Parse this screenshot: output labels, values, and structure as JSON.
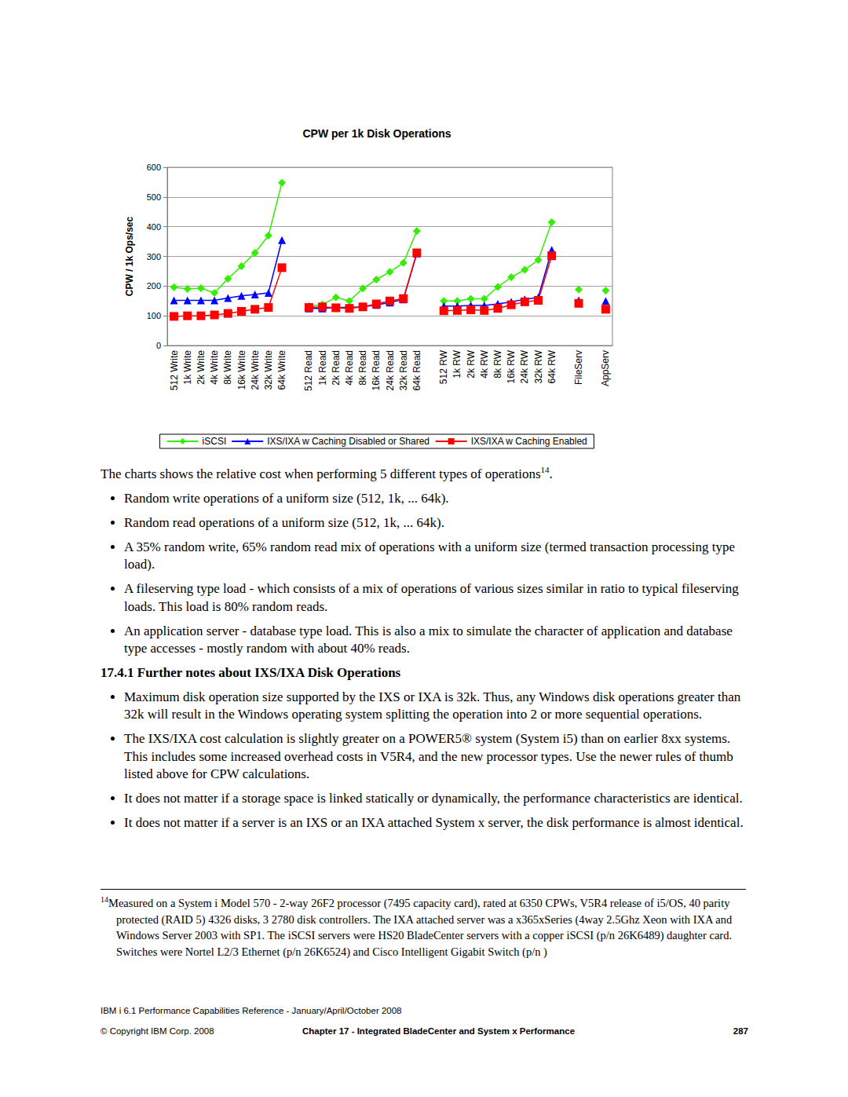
{
  "chart_data": {
    "type": "line",
    "title": "CPW per 1k Disk Operations",
    "y_label": "CPW / 1k Ops/sec",
    "categories": [
      "512 Write",
      "1k Write",
      "2k Write",
      "4k Write",
      "8k Write",
      "16k Write",
      "24k Write",
      "32k Write",
      "64k Write",
      null,
      "512 Read",
      "1k Read",
      "2k Read",
      "4k Read",
      "8k Read",
      "16k Read",
      "24k Read",
      "32k Read",
      "64k Read",
      null,
      "512 RW",
      "1k RW",
      "2k RW",
      "4k RW",
      "8k RW",
      "16k RW",
      "24k RW",
      "32k RW",
      "64k RW",
      null,
      "FileServ",
      null,
      "AppServ"
    ],
    "series": [
      {
        "name": "iSCSI",
        "color": "#33ee00",
        "marker": "diamond",
        "values": [
          196,
          190,
          193,
          177,
          225,
          267,
          312,
          370,
          548,
          null,
          133,
          138,
          162,
          150,
          192,
          222,
          248,
          278,
          385,
          null,
          150,
          150,
          157,
          157,
          197,
          230,
          255,
          288,
          415,
          null,
          188,
          null,
          185
        ]
      },
      {
        "name": "IXS/IXA w Caching Disabled or Shared",
        "color": "#0000ff",
        "marker": "triangle",
        "values": [
          152,
          152,
          152,
          152,
          160,
          167,
          172,
          177,
          355,
          null,
          125,
          125,
          128,
          128,
          130,
          137,
          145,
          155,
          310,
          null,
          133,
          133,
          135,
          135,
          140,
          147,
          155,
          162,
          322,
          null,
          152,
          null,
          150
        ]
      },
      {
        "name": "IXS/IXA w Caching Enabled",
        "color": "#ff0000",
        "marker": "square",
        "values": [
          98,
          100,
          100,
          103,
          108,
          115,
          122,
          128,
          262,
          null,
          128,
          130,
          127,
          125,
          130,
          140,
          150,
          158,
          312,
          null,
          117,
          118,
          120,
          118,
          125,
          137,
          147,
          152,
          302,
          null,
          142,
          null,
          122
        ]
      }
    ],
    "ylim": [
      0,
      600
    ],
    "yticks": [
      0,
      100,
      200,
      300,
      400,
      500,
      600
    ],
    "grid": true,
    "legend": "bottom"
  },
  "document": {
    "intro": {
      "text": "The charts shows the relative cost when performing 5 different types of operations",
      "footnote_ref": "14",
      "text_after": "."
    },
    "bullets": [
      "Random write operations of a uniform size (512, 1k, ... 64k).",
      "Random read operations of a uniform size (512, 1k, ... 64k).",
      "A 35% random write, 65% random read mix of operations with a uniform size (termed transaction processing type load).",
      "A fileserving type load - which consists of a mix of operations of various sizes similar in ratio to typical fileserving loads.  This load is 80% random reads.",
      "An application server - database type load. This is also a mix to simulate the character of application and database type accesses - mostly random with about 40% reads."
    ],
    "section": {
      "heading": "17.4.1 Further notes about IXS/IXA Disk Operations",
      "bullets": [
        "Maximum disk operation size supported by the IXS or IXA is 32k.  Thus, any Windows disk operations greater than 32k will result in the Windows operating system splitting the operation into 2 or more sequential operations.",
        "The IXS/IXA cost calculation is slightly greater on a POWER5® system (System i5) than on earlier 8xx systems. This includes some increased overhead costs in V5R4, and the new processor types. Use the newer rules of thumb listed above for CPW calculations.",
        "It does not matter if a storage space is linked statically or dynamically, the performance characteristics are identical.",
        "It does not matter if a server is an IXS or an IXA attached System x server, the disk performance is almost identical."
      ]
    },
    "footnote": {
      "mark": "14",
      "text": "Measured on a System i Model 570 - 2-way 26F2 processor (7495 capacity card),  rated at 6350 CPWs, V5R4 release of i5/OS, 40 parity protected (RAID 5) 4326 disks, 3 2780 disk controllers.  The IXA attached server was a x365xSeries (4way 2.5Ghz Xeon with IXA and Windows Server 2003 with SP1.  The iSCSI servers were HS20 BladeCenter servers with a copper iSCSI (p/n 26K6489) daughter card.  Switches were Nortel L2/3 Ethernet (p/n 26K6524) and Cisco Intelligent Gigabit Switch (p/n )"
    },
    "footer": {
      "line1": "IBM i 6.1 Performance Capabilities Reference - January/April/October 2008",
      "copyright": "© Copyright IBM Corp. 2008",
      "chapter": "Chapter 17 - Integrated BladeCenter and System x Performance",
      "page": "287"
    }
  }
}
